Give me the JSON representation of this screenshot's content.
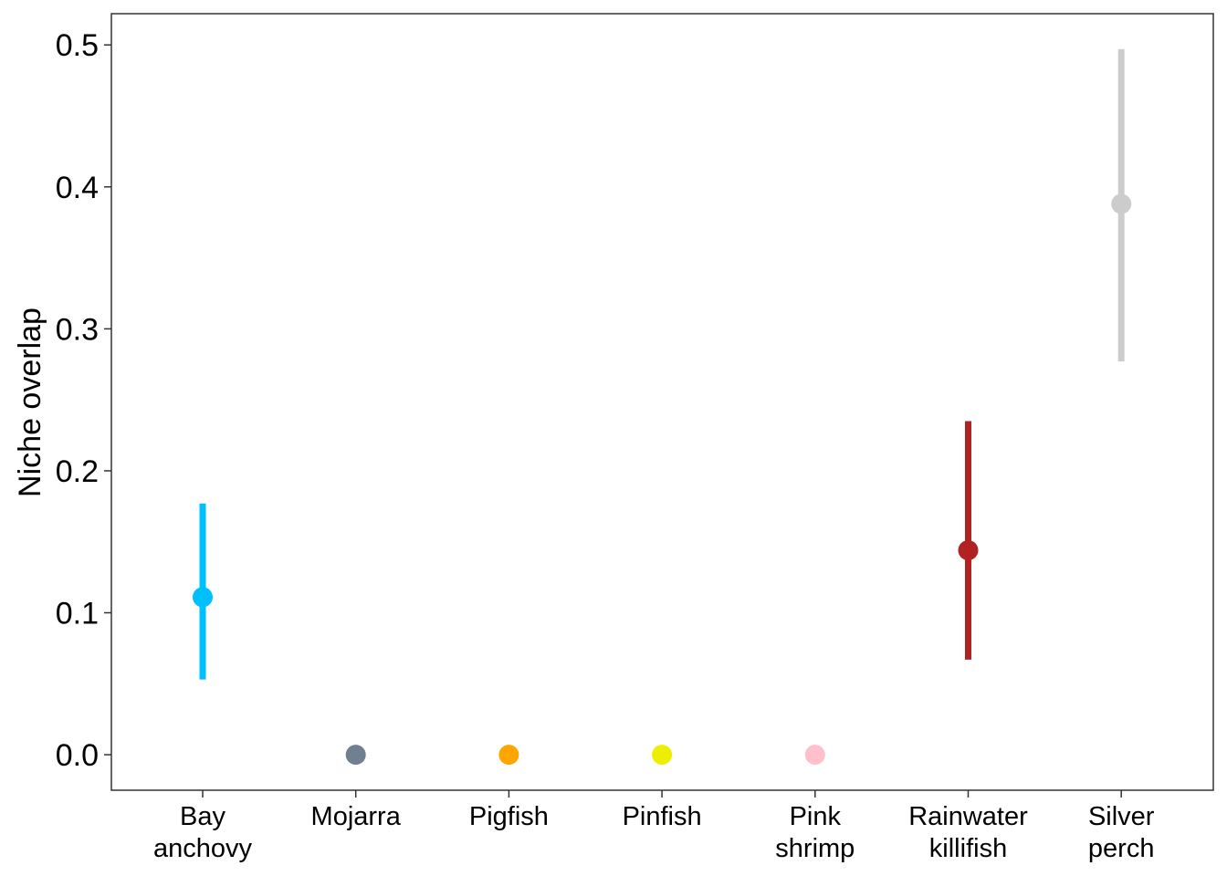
{
  "chart_data": {
    "type": "scatter",
    "title": "",
    "xlabel": "",
    "ylabel": "Niche overlap",
    "ylim": [
      -0.025,
      0.522
    ],
    "yticks": [
      "0.0",
      "0.1",
      "0.2",
      "0.3",
      "0.4",
      "0.5"
    ],
    "grid": false,
    "legend": "none",
    "categories": [
      [
        "Bay",
        "anchovy"
      ],
      [
        "Mojarra"
      ],
      [
        "Pigfish"
      ],
      [
        "Pinfish"
      ],
      [
        "Pink",
        "shrimp"
      ],
      [
        "Rainwater",
        "killifish"
      ],
      [
        "Silver",
        "perch"
      ]
    ],
    "points": [
      {
        "value": 0.111,
        "low": 0.053,
        "high": 0.177,
        "color": "#00BFFF"
      },
      {
        "value": 0.0,
        "low": null,
        "high": null,
        "color": "#708090"
      },
      {
        "value": 0.0,
        "low": null,
        "high": null,
        "color": "#FFA500"
      },
      {
        "value": 0.0,
        "low": null,
        "high": null,
        "color": "#EEEE00"
      },
      {
        "value": 0.0,
        "low": null,
        "high": null,
        "color": "#FFC0CB"
      },
      {
        "value": 0.144,
        "low": 0.067,
        "high": 0.235,
        "color": "#B22222"
      },
      {
        "value": 0.388,
        "low": 0.277,
        "high": 0.497,
        "color": "#CCCCCC"
      }
    ]
  }
}
